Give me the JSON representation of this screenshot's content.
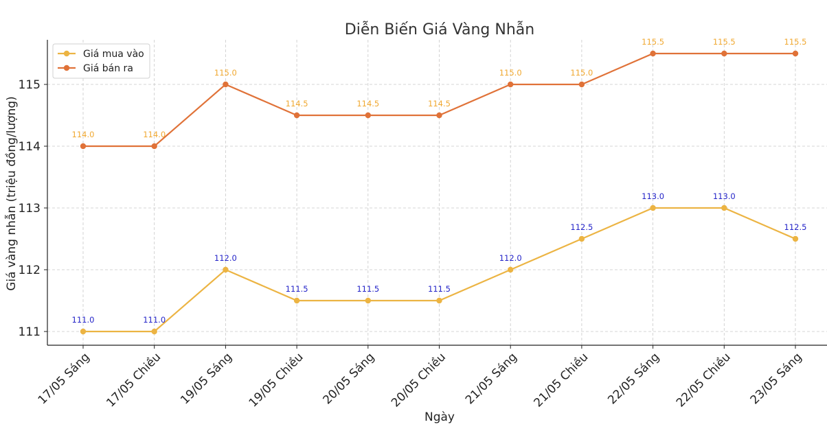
{
  "chart_data": {
    "type": "line",
    "title": "Diễn Biến Giá Vàng Nhẫn",
    "xlabel": "Ngày",
    "ylabel": "Giá vàng nhẫn (triệu đồng/lượng)",
    "categories": [
      "17/05 Sáng",
      "17/05 Chiều",
      "19/05 Sáng",
      "19/05 Chiều",
      "20/05 Sáng",
      "20/05 Chiều",
      "21/05 Sáng",
      "21/05 Chiều",
      "22/05 Sáng",
      "22/05 Chiều",
      "23/05 Sáng"
    ],
    "ylim": [
      110.75,
      115.75
    ],
    "yticks": [
      111,
      112,
      113,
      114,
      115
    ],
    "grid": true,
    "legend_position": "top-left",
    "series": [
      {
        "name": "Giá mua vào",
        "color": "#ecb443",
        "label_color": "#2323c8",
        "values": [
          111.0,
          111.0,
          112.0,
          111.5,
          111.5,
          111.5,
          112.0,
          112.5,
          113.0,
          113.0,
          112.5
        ],
        "value_labels": [
          "111.0",
          "111.0",
          "112.0",
          "111.5",
          "111.5",
          "111.5",
          "112.0",
          "112.5",
          "113.0",
          "113.0",
          "112.5"
        ]
      },
      {
        "name": "Giá bán ra",
        "color": "#e07238",
        "label_color": "#f0a830",
        "values": [
          114.0,
          114.0,
          115.0,
          114.5,
          114.5,
          114.5,
          115.0,
          115.0,
          115.5,
          115.5,
          115.5
        ],
        "value_labels": [
          "114.0",
          "114.0",
          "115.0",
          "114.5",
          "114.5",
          "114.5",
          "115.0",
          "115.0",
          "115.5",
          "115.5",
          "115.5"
        ]
      }
    ]
  }
}
